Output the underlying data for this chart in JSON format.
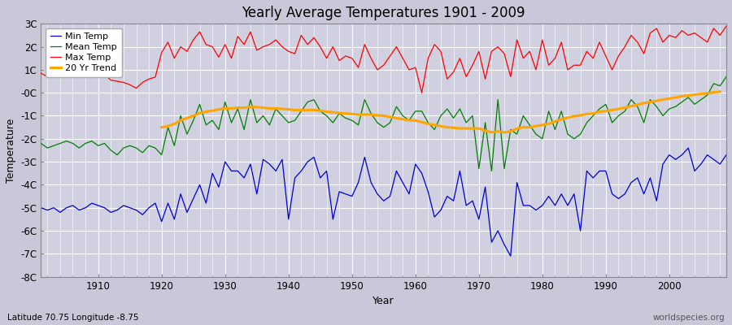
{
  "title": "Yearly Average Temperatures 1901 - 2009",
  "xlabel": "Year",
  "ylabel": "Temperature",
  "bottom_left_label": "Latitude 70.75 Longitude -8.75",
  "bottom_right_label": "worldspecies.org",
  "years": [
    1901,
    1902,
    1903,
    1904,
    1905,
    1906,
    1907,
    1908,
    1909,
    1910,
    1911,
    1912,
    1913,
    1914,
    1915,
    1916,
    1917,
    1918,
    1919,
    1920,
    1921,
    1922,
    1923,
    1924,
    1925,
    1926,
    1927,
    1928,
    1929,
    1930,
    1931,
    1932,
    1933,
    1934,
    1935,
    1936,
    1937,
    1938,
    1939,
    1940,
    1941,
    1942,
    1943,
    1944,
    1945,
    1946,
    1947,
    1948,
    1949,
    1950,
    1951,
    1952,
    1953,
    1954,
    1955,
    1956,
    1957,
    1958,
    1959,
    1960,
    1961,
    1962,
    1963,
    1964,
    1965,
    1966,
    1967,
    1968,
    1969,
    1970,
    1971,
    1972,
    1973,
    1974,
    1975,
    1976,
    1977,
    1978,
    1979,
    1980,
    1981,
    1982,
    1983,
    1984,
    1985,
    1986,
    1987,
    1988,
    1989,
    1990,
    1991,
    1992,
    1993,
    1994,
    1995,
    1996,
    1997,
    1998,
    1999,
    2000,
    2001,
    2002,
    2003,
    2004,
    2005,
    2006,
    2007,
    2008,
    2009
  ],
  "max_temp": [
    0.85,
    0.7,
    0.75,
    0.85,
    0.9,
    0.8,
    0.7,
    0.85,
    0.95,
    0.9,
    0.8,
    0.55,
    0.5,
    0.45,
    0.35,
    0.2,
    0.45,
    0.6,
    0.68,
    1.75,
    2.2,
    1.5,
    2.0,
    1.8,
    2.3,
    2.65,
    2.1,
    2.0,
    1.55,
    2.1,
    1.5,
    2.45,
    2.1,
    2.65,
    1.85,
    2.0,
    2.1,
    2.3,
    2.0,
    1.8,
    1.7,
    2.5,
    2.1,
    2.4,
    2.0,
    1.5,
    2.0,
    1.4,
    1.6,
    1.5,
    1.1,
    2.1,
    1.5,
    1.0,
    1.2,
    1.6,
    2.0,
    1.5,
    1.0,
    1.1,
    0.0,
    1.5,
    2.1,
    1.8,
    0.6,
    0.9,
    1.5,
    0.7,
    1.2,
    1.8,
    0.6,
    1.8,
    2.0,
    1.7,
    0.7,
    2.3,
    1.5,
    1.8,
    1.0,
    2.3,
    1.2,
    1.5,
    2.2,
    1.0,
    1.2,
    1.2,
    1.8,
    1.5,
    2.2,
    1.6,
    1.0,
    1.6,
    2.0,
    2.5,
    2.2,
    1.7,
    2.6,
    2.8,
    2.2,
    2.5,
    2.4,
    2.7,
    2.5,
    2.6,
    2.4,
    2.2,
    2.8,
    2.5,
    2.9
  ],
  "mean_temp": [
    -2.2,
    -2.4,
    -2.3,
    -2.2,
    -2.1,
    -2.2,
    -2.4,
    -2.2,
    -2.1,
    -2.3,
    -2.2,
    -2.5,
    -2.7,
    -2.4,
    -2.3,
    -2.4,
    -2.6,
    -2.3,
    -2.4,
    -2.7,
    -1.5,
    -2.3,
    -1.0,
    -1.8,
    -1.2,
    -0.5,
    -1.4,
    -1.2,
    -1.6,
    -0.4,
    -1.3,
    -0.7,
    -1.6,
    -0.3,
    -1.3,
    -1.0,
    -1.4,
    -0.7,
    -1.0,
    -1.3,
    -1.2,
    -0.8,
    -0.4,
    -0.3,
    -0.8,
    -1.0,
    -1.3,
    -0.9,
    -1.1,
    -1.2,
    -1.4,
    -0.3,
    -0.9,
    -1.3,
    -1.5,
    -1.3,
    -0.6,
    -1.0,
    -1.2,
    -0.8,
    -0.8,
    -1.3,
    -1.6,
    -1.0,
    -0.7,
    -1.1,
    -0.7,
    -1.3,
    -1.0,
    -3.3,
    -1.3,
    -3.4,
    -0.3,
    -3.3,
    -1.6,
    -1.8,
    -1.0,
    -1.4,
    -1.8,
    -2.0,
    -0.8,
    -1.6,
    -0.8,
    -1.8,
    -2.0,
    -1.8,
    -1.3,
    -1.0,
    -0.7,
    -0.5,
    -1.3,
    -1.0,
    -0.8,
    -0.3,
    -0.6,
    -1.3,
    -0.3,
    -0.6,
    -1.0,
    -0.7,
    -0.6,
    -0.4,
    -0.2,
    -0.5,
    -0.3,
    -0.1,
    0.4,
    0.3,
    0.7
  ],
  "min_temp": [
    -5.0,
    -5.1,
    -5.0,
    -5.2,
    -5.0,
    -4.9,
    -5.1,
    -5.0,
    -4.8,
    -4.9,
    -5.0,
    -5.2,
    -5.1,
    -4.9,
    -5.0,
    -5.1,
    -5.3,
    -5.0,
    -4.8,
    -5.6,
    -4.8,
    -5.5,
    -4.4,
    -5.2,
    -4.6,
    -4.0,
    -4.8,
    -3.5,
    -4.1,
    -3.0,
    -3.4,
    -3.4,
    -3.7,
    -3.1,
    -4.4,
    -2.9,
    -3.1,
    -3.4,
    -2.9,
    -5.5,
    -3.7,
    -3.4,
    -3.0,
    -2.8,
    -3.7,
    -3.4,
    -5.5,
    -4.3,
    -4.4,
    -4.5,
    -3.9,
    -2.8,
    -3.9,
    -4.4,
    -4.7,
    -4.5,
    -3.4,
    -3.9,
    -4.4,
    -3.1,
    -3.5,
    -4.3,
    -5.4,
    -5.1,
    -4.5,
    -4.7,
    -3.4,
    -4.9,
    -4.7,
    -5.5,
    -4.1,
    -6.5,
    -6.0,
    -6.6,
    -7.1,
    -3.9,
    -4.9,
    -4.9,
    -5.1,
    -4.9,
    -4.5,
    -4.9,
    -4.4,
    -4.9,
    -4.4,
    -6.0,
    -3.4,
    -3.7,
    -3.4,
    -3.4,
    -4.4,
    -4.6,
    -4.4,
    -3.9,
    -3.7,
    -4.4,
    -3.7,
    -4.7,
    -3.1,
    -2.7,
    -2.9,
    -2.7,
    -2.4,
    -3.4,
    -3.1,
    -2.7,
    -2.9,
    -3.1,
    -2.7
  ],
  "trend_20yr": [
    null,
    null,
    null,
    null,
    null,
    null,
    null,
    null,
    null,
    null,
    null,
    null,
    null,
    null,
    null,
    null,
    null,
    null,
    null,
    -1.5,
    -1.45,
    -1.35,
    -1.2,
    -1.1,
    -1.0,
    -0.88,
    -0.82,
    -0.78,
    -0.72,
    -0.68,
    -0.68,
    -0.65,
    -0.65,
    -0.62,
    -0.62,
    -0.65,
    -0.68,
    -0.68,
    -0.7,
    -0.72,
    -0.75,
    -0.75,
    -0.75,
    -0.75,
    -0.78,
    -0.82,
    -0.85,
    -0.88,
    -0.9,
    -0.92,
    -0.95,
    -0.95,
    -0.95,
    -0.98,
    -1.0,
    -1.05,
    -1.1,
    -1.15,
    -1.2,
    -1.2,
    -1.28,
    -1.35,
    -1.4,
    -1.45,
    -1.5,
    -1.52,
    -1.55,
    -1.55,
    -1.55,
    -1.55,
    -1.65,
    -1.72,
    -1.68,
    -1.72,
    -1.68,
    -1.55,
    -1.5,
    -1.5,
    -1.45,
    -1.4,
    -1.35,
    -1.25,
    -1.15,
    -1.08,
    -1.02,
    -0.98,
    -0.92,
    -0.9,
    -0.82,
    -0.8,
    -0.75,
    -0.7,
    -0.65,
    -0.58,
    -0.52,
    -0.45,
    -0.4,
    -0.35,
    -0.3,
    -0.25,
    -0.2,
    -0.15,
    -0.12,
    -0.08,
    -0.05,
    -0.02,
    0.02,
    0.05
  ],
  "colors": {
    "max_temp": "#ff0000",
    "mean_temp": "#008000",
    "min_temp": "#0000cc",
    "trend_20yr": "#ffa500",
    "fig_bg": "#c8c8d8",
    "plot_bg": "#d0d0e0"
  },
  "ylim": [
    -8,
    3
  ],
  "yticks": [
    -8,
    -7,
    -6,
    -5,
    -4,
    -3,
    -2,
    -1,
    0,
    1,
    2,
    3
  ],
  "ytick_labels": [
    "-8C",
    "-7C",
    "-6C",
    "-5C",
    "-4C",
    "-3C",
    "-2C",
    "-1C",
    "-0C",
    "1C",
    "2C",
    "3C"
  ],
  "xlim": [
    1901,
    2009
  ],
  "xticks": [
    1910,
    1920,
    1930,
    1940,
    1950,
    1960,
    1970,
    1980,
    1990,
    2000
  ]
}
